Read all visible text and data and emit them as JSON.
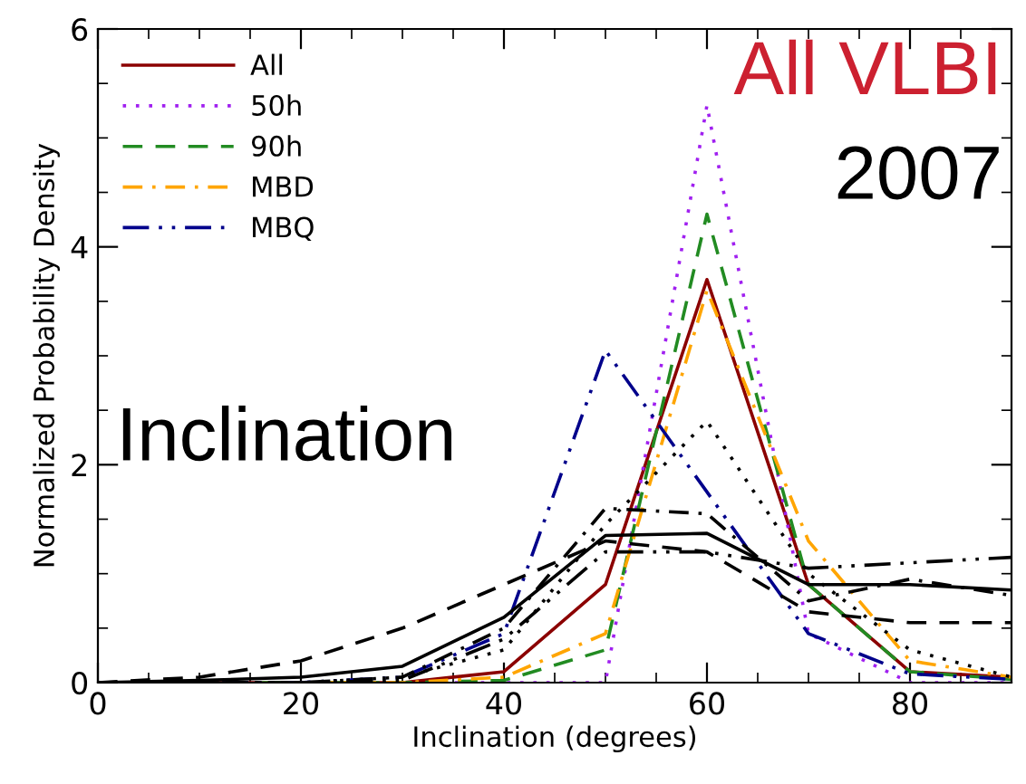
{
  "chart_data": {
    "type": "line",
    "xlabel": "Inclination (degrees)",
    "ylabel": "Normalized Probability Density",
    "x": [
      0,
      10,
      20,
      30,
      40,
      50,
      60,
      70,
      80,
      90
    ],
    "xlim": [
      0,
      90
    ],
    "xticks": [
      0,
      20,
      40,
      60,
      80
    ],
    "ylim": [
      0,
      6
    ],
    "yticks": [
      0,
      2,
      4,
      6
    ],
    "grid": false,
    "legend": "top left",
    "series": [
      {
        "name": "All",
        "color": "#8b0000",
        "line_style": "solid",
        "values": [
          0,
          0,
          0,
          0,
          0.1,
          0.9,
          3.7,
          0.9,
          0.1,
          0.05
        ]
      },
      {
        "name": "50h",
        "color": "#a020f0",
        "line_style": "dotted",
        "values": [
          null,
          null,
          null,
          0,
          0,
          0,
          5.3,
          0.45,
          0,
          0
        ]
      },
      {
        "name": "90h",
        "color": "#228b22",
        "line_style": "dashed",
        "values": [
          0,
          0,
          0,
          0,
          0.02,
          0.3,
          4.3,
          0.9,
          0.1,
          0.03
        ]
      },
      {
        "name": "MBD",
        "color": "#ffa500",
        "line_style": "dashdot",
        "values": [
          null,
          null,
          0,
          0,
          0.05,
          0.45,
          3.6,
          1.3,
          0.2,
          0.05
        ]
      },
      {
        "name": "MBQ",
        "color": "#00008b",
        "line_style": "dashdotdot",
        "values": [
          0,
          0,
          0,
          0.05,
          0.45,
          3.05,
          1.75,
          0.45,
          0.08,
          0.03
        ]
      },
      {
        "color": "#000000",
        "line_style": "solid",
        "values": [
          0,
          0.02,
          0.05,
          0.15,
          0.6,
          1.35,
          1.37,
          0.9,
          0.9,
          0.85
        ]
      },
      {
        "color": "#000000",
        "line_style": "dashed",
        "values": [
          0,
          0.05,
          0.2,
          0.5,
          0.9,
          1.3,
          1.2,
          0.65,
          0.55,
          0.55
        ]
      },
      {
        "color": "#000000",
        "line_style": "dotted",
        "values": [
          0,
          0,
          0,
          0.05,
          0.3,
          1.45,
          2.4,
          1.0,
          0.3,
          0.05
        ]
      },
      {
        "color": "#000000",
        "line_style": "dashdot",
        "values": [
          0,
          0,
          0,
          0.05,
          0.5,
          1.6,
          1.55,
          0.75,
          0.95,
          0.8
        ]
      },
      {
        "color": "#000000",
        "line_style": "dashdotdot",
        "values": [
          0,
          0,
          0,
          0.02,
          0.4,
          1.2,
          1.2,
          1.05,
          1.1,
          1.15
        ]
      }
    ],
    "annotations": [
      "All VLBI",
      "2007",
      "Inclination"
    ]
  }
}
